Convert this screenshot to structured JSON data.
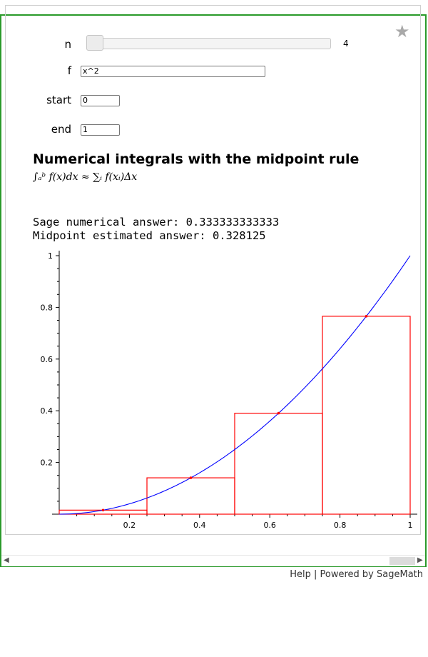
{
  "controls": {
    "n_label": "n",
    "n_value": "4",
    "f_label": "f",
    "f_value": "x^2",
    "start_label": "start",
    "start_value": "0",
    "end_label": "end",
    "end_value": "1"
  },
  "output": {
    "title": "Numerical integrals with the midpoint rule",
    "formula": "∫ₐᵇ f(x)dx ≈ ∑ᵢ f(xᵢ)Δx",
    "sage_answer": "Sage numerical answer: 0.333333333333",
    "midpoint_answer": "Midpoint estimated answer: 0.328125"
  },
  "footer": {
    "help": "Help",
    "separator": "|",
    "powered": "Powered by SageMath"
  },
  "colors": {
    "frame": "#2a9a2a",
    "curve": "#0000ff",
    "rectangles": "#ff0000"
  },
  "icons": {
    "star": "star-icon",
    "scroll_left": "chevron-left-icon",
    "scroll_right": "chevron-right-icon"
  },
  "chart_data": {
    "type": "line",
    "title": "",
    "xlabel": "",
    "ylabel": "",
    "xlim": [
      0,
      1
    ],
    "ylim": [
      0,
      1
    ],
    "x_ticks": [
      "0.2",
      "0.4",
      "0.6",
      "0.8",
      "1"
    ],
    "y_ticks": [
      "0.2",
      "0.4",
      "0.6",
      "0.8",
      "1"
    ],
    "grid": false,
    "curve": {
      "function": "x^2",
      "x_range": [
        0,
        1
      ]
    },
    "bars": [
      {
        "x0": 0.0,
        "x1": 0.25,
        "height": 0.015625
      },
      {
        "x0": 0.25,
        "x1": 0.5,
        "height": 0.140625
      },
      {
        "x0": 0.5,
        "x1": 0.75,
        "height": 0.390625
      },
      {
        "x0": 0.75,
        "x1": 1.0,
        "height": 0.765625
      }
    ],
    "midpoints": [
      {
        "x": 0.125,
        "y": 0.015625
      },
      {
        "x": 0.375,
        "y": 0.140625
      },
      {
        "x": 0.625,
        "y": 0.390625
      },
      {
        "x": 0.875,
        "y": 0.765625
      }
    ]
  }
}
